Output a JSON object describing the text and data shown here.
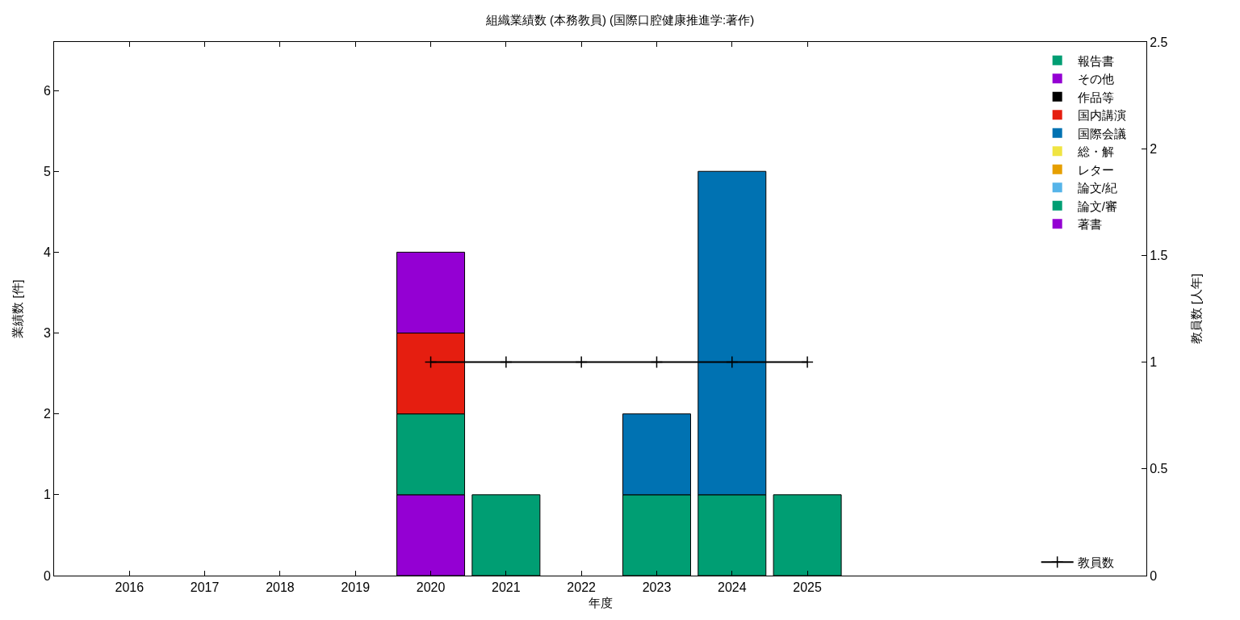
{
  "chart_data": {
    "type": "bar",
    "title": "組織業績数 (本務教員) (国際口腔健康推進学:著作)",
    "xlabel": "年度",
    "ylabel": "業績数 [件]",
    "y2label": "教員数 [人年]",
    "x": [
      2016,
      2017,
      2018,
      2019,
      2020,
      2021,
      2022,
      2023,
      2024,
      2025
    ],
    "xlim": [
      2015,
      2029.5
    ],
    "xticks": [
      2016,
      2017,
      2018,
      2019,
      2020,
      2021,
      2022,
      2023,
      2024,
      2025
    ],
    "ylim": [
      0,
      6.6
    ],
    "yticks": [
      0,
      1,
      2,
      3,
      4,
      5,
      6
    ],
    "y2lim": [
      0,
      2.5
    ],
    "y2ticks": [
      0,
      0.5,
      1,
      1.5,
      2,
      2.5
    ],
    "stacked": true,
    "grid": false,
    "legend": "right",
    "series": [
      {
        "name": "著書",
        "color": "#9400d3",
        "values": [
          0,
          0,
          0,
          0,
          1,
          0,
          0,
          0,
          0,
          0
        ]
      },
      {
        "name": "論文/審",
        "color": "#009e73",
        "values": [
          0,
          0,
          0,
          0,
          1,
          1,
          0,
          1,
          1,
          1
        ]
      },
      {
        "name": "論文/紀",
        "color": "#56b4e9",
        "values": [
          0,
          0,
          0,
          0,
          0,
          0,
          0,
          0,
          0,
          0
        ]
      },
      {
        "name": "レター",
        "color": "#e69f00",
        "values": [
          0,
          0,
          0,
          0,
          0,
          0,
          0,
          0,
          0,
          0
        ]
      },
      {
        "name": "総・解",
        "color": "#f0e442",
        "values": [
          0,
          0,
          0,
          0,
          0,
          0,
          0,
          0,
          0,
          0
        ]
      },
      {
        "name": "国際会議",
        "color": "#0072b2",
        "values": [
          0,
          0,
          0,
          0,
          0,
          0,
          0,
          1,
          4,
          0
        ]
      },
      {
        "name": "国内講演",
        "color": "#e51e10",
        "values": [
          0,
          0,
          0,
          0,
          1,
          0,
          0,
          0,
          0,
          0
        ]
      },
      {
        "name": "作品等",
        "color": "#000000",
        "values": [
          0,
          0,
          0,
          0,
          0,
          0,
          0,
          0,
          0,
          0
        ]
      },
      {
        "name": "その他",
        "color": "#9400d3",
        "values": [
          0,
          0,
          0,
          0,
          1,
          0,
          0,
          0,
          0,
          0
        ]
      },
      {
        "name": "報告書",
        "color": "#009e73",
        "values": [
          0,
          0,
          0,
          0,
          0,
          0,
          0,
          0,
          0,
          0
        ]
      },
      {
        "name": "教員数",
        "type": "line",
        "axis": "y2",
        "color": "#000000",
        "marker": "cross",
        "x": [
          2020,
          2021,
          2022,
          2023,
          2024,
          2025
        ],
        "values": [
          1,
          1,
          1,
          1,
          1,
          1
        ]
      }
    ]
  }
}
